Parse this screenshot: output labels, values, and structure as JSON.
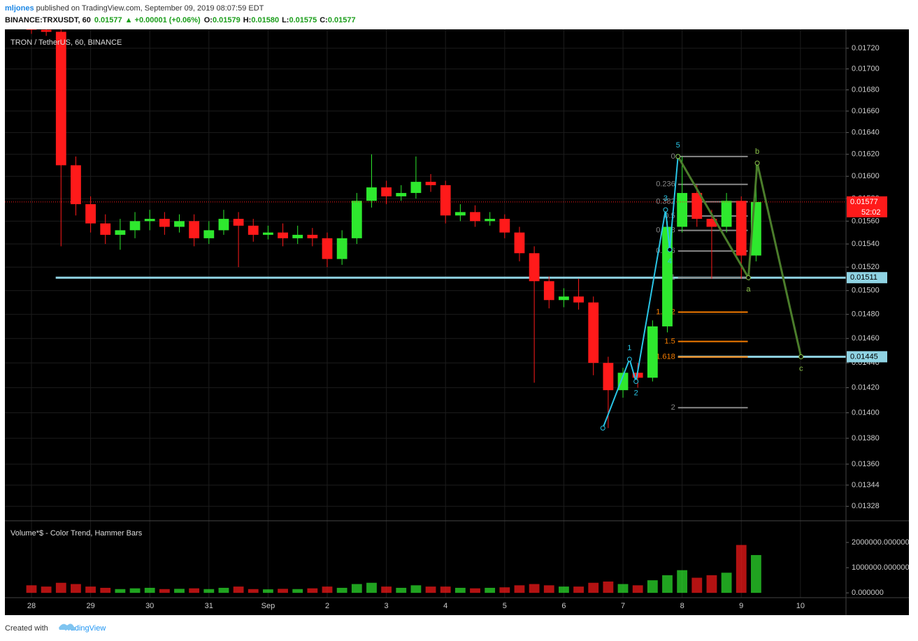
{
  "header": {
    "author": "mljones",
    "published": " published on TradingView.com, September 09, 2019 08:07:59 EDT",
    "symbol": "BINANCE:TRXUSDT, 60",
    "last": "0.01577",
    "change": "+0.00001 (+0.06%)",
    "o_label": "O:",
    "o": "0.01579",
    "h_label": "H:",
    "h": "0.01580",
    "l_label": "L:",
    "l": "0.01575",
    "c_label": "C:",
    "c": "0.01577"
  },
  "footer": {
    "text": "Created with",
    "brand": "TradingView"
  },
  "chart_data": {
    "type": "candlestick",
    "title": "TRON / TetherUS, 60, BINANCE",
    "log_scale": true,
    "grid": true,
    "up_color": "#2ee82e",
    "down_color": "#ff1a1a",
    "x": [
      0,
      0.25,
      0.5,
      0.75,
      1,
      1.25,
      1.5,
      1.75,
      2,
      2.25,
      2.5,
      2.75,
      3,
      3.25,
      3.5,
      3.75,
      4,
      4.25,
      4.5,
      4.75,
      5,
      5.25,
      5.5,
      5.75,
      6,
      6.25,
      6.5,
      6.75,
      7,
      7.25,
      7.5,
      7.75,
      8,
      8.25,
      8.5,
      8.75,
      9,
      9.25,
      9.5,
      9.75,
      10,
      10.25,
      10.5,
      10.75,
      11,
      11.25,
      11.5,
      11.75,
      12,
      12.25
    ],
    "open": [
      0.0174,
      0.01738,
      0.01736,
      0.0161,
      0.01575,
      0.01558,
      0.01548,
      0.01552,
      0.0156,
      0.01562,
      0.01555,
      0.0156,
      0.01545,
      0.01552,
      0.01562,
      0.01556,
      0.01548,
      0.0155,
      0.01545,
      0.01548,
      0.01545,
      0.01527,
      0.01545,
      0.01578,
      0.0159,
      0.01582,
      0.01585,
      0.01595,
      0.01592,
      0.01565,
      0.01568,
      0.0156,
      0.01562,
      0.0155,
      0.01532,
      0.01508,
      0.01492,
      0.01495,
      0.0149,
      0.0144,
      0.01418,
      0.01432,
      0.01428,
      0.0147,
      0.01555,
      0.01585,
      0.01562,
      0.01555,
      0.01578,
      0.0153
    ],
    "high": [
      0.01744,
      0.01742,
      0.0174,
      0.01618,
      0.01582,
      0.01566,
      0.01562,
      0.01568,
      0.0157,
      0.01568,
      0.01566,
      0.01566,
      0.0156,
      0.0157,
      0.01568,
      0.01562,
      0.01556,
      0.01558,
      0.01556,
      0.01554,
      0.0155,
      0.01552,
      0.01585,
      0.0162,
      0.01596,
      0.01592,
      0.01618,
      0.01602,
      0.01596,
      0.01575,
      0.01574,
      0.01568,
      0.01566,
      0.01555,
      0.01538,
      0.01512,
      0.01502,
      0.0151,
      0.01495,
      0.01445,
      0.01436,
      0.0144,
      0.01475,
      0.0156,
      0.01618,
      0.01592,
      0.0157,
      0.01585,
      0.01582,
      0.0161
    ],
    "low": [
      0.01734,
      0.01732,
      0.01538,
      0.01565,
      0.0155,
      0.0154,
      0.01535,
      0.01545,
      0.01552,
      0.01548,
      0.0155,
      0.01538,
      0.0154,
      0.01548,
      0.0152,
      0.01542,
      0.01544,
      0.01538,
      0.0154,
      0.01538,
      0.0152,
      0.01522,
      0.0154,
      0.01572,
      0.01575,
      0.01578,
      0.0158,
      0.01586,
      0.01558,
      0.0156,
      0.01555,
      0.01556,
      0.01545,
      0.01525,
      0.01424,
      0.01485,
      0.01486,
      0.01484,
      0.0143,
      0.01388,
      0.01412,
      0.0142,
      0.01425,
      0.01465,
      0.0155,
      0.01555,
      0.0151,
      0.0155,
      0.0151,
      0.01525
    ],
    "close": [
      0.01738,
      0.01736,
      0.0161,
      0.01575,
      0.01558,
      0.01548,
      0.01552,
      0.0156,
      0.01562,
      0.01555,
      0.0156,
      0.01545,
      0.01552,
      0.01562,
      0.01556,
      0.01548,
      0.0155,
      0.01545,
      0.01548,
      0.01545,
      0.01527,
      0.01545,
      0.01578,
      0.0159,
      0.01582,
      0.01585,
      0.01595,
      0.01592,
      0.01565,
      0.01568,
      0.0156,
      0.01562,
      0.0155,
      0.01532,
      0.01508,
      0.01492,
      0.01495,
      0.0149,
      0.0144,
      0.01418,
      0.01432,
      0.01428,
      0.0147,
      0.01555,
      0.01585,
      0.01562,
      0.01555,
      0.01578,
      0.0153,
      0.01577
    ],
    "xlim": [
      -0.449,
      13.77
    ],
    "xticks": [
      {
        "value": 0,
        "label": "28"
      },
      {
        "value": 1,
        "label": "29"
      },
      {
        "value": 2,
        "label": "30"
      },
      {
        "value": 3,
        "label": "31"
      },
      {
        "value": 4,
        "label": "Sep"
      },
      {
        "value": 5,
        "label": "2"
      },
      {
        "value": 6,
        "label": "3"
      },
      {
        "value": 7,
        "label": "4"
      },
      {
        "value": 8,
        "label": "5"
      },
      {
        "value": 9,
        "label": "6"
      },
      {
        "value": 10,
        "label": "7"
      },
      {
        "value": 11,
        "label": "8"
      },
      {
        "value": 12,
        "label": "9"
      },
      {
        "value": 13,
        "label": "10"
      }
    ],
    "ylim": [
      0.013172,
      0.017384
    ],
    "yticks": [
      {
        "value": 0.0172,
        "label": "0.01720"
      },
      {
        "value": 0.017,
        "label": "0.01700"
      },
      {
        "value": 0.0168,
        "label": "0.01680"
      },
      {
        "value": 0.0166,
        "label": "0.01660"
      },
      {
        "value": 0.0164,
        "label": "0.01640"
      },
      {
        "value": 0.0162,
        "label": "0.01620"
      },
      {
        "value": 0.016,
        "label": "0.01600"
      },
      {
        "value": 0.0158,
        "label": "0.01580"
      },
      {
        "value": 0.0156,
        "label": "0.01560"
      },
      {
        "value": 0.0154,
        "label": "0.01540"
      },
      {
        "value": 0.0152,
        "label": "0.01520"
      },
      {
        "value": 0.015,
        "label": "0.01500"
      },
      {
        "value": 0.0148,
        "label": "0.01480"
      },
      {
        "value": 0.0146,
        "label": "0.01460"
      },
      {
        "value": 0.0144,
        "label": "0.01440"
      },
      {
        "value": 0.0142,
        "label": "0.01420"
      },
      {
        "value": 0.014,
        "label": "0.01400"
      },
      {
        "value": 0.0138,
        "label": "0.01380"
      },
      {
        "value": 0.0136,
        "label": "0.01360"
      },
      {
        "value": 0.01344,
        "label": "0.01344"
      },
      {
        "value": 0.01328,
        "label": "0.01328"
      }
    ],
    "price_line": {
      "value": 0.01577,
      "countdown": "52:02",
      "color": "#ff1a1a"
    },
    "hlines": {
      "color": "#8fd3e3",
      "lines": [
        {
          "value": 0.01511,
          "x_start": 0.41
        },
        {
          "value": 0.01445,
          "x_start": 10.93
        }
      ]
    },
    "fib": {
      "levels": [
        0,
        0.236,
        0.382,
        0.5,
        0.618,
        0.786,
        1,
        1.272,
        1.5,
        1.618,
        2
      ],
      "colors": [
        "#888888",
        "#888888",
        "#888888",
        "#888888",
        "#888888",
        "#888888",
        "#888888",
        "#f57c00",
        "#f57c00",
        "#f57c00",
        "#888888"
      ],
      "start_price": 0.01618,
      "end_price": 0.01511,
      "x": [
        10.93,
        12.11
      ]
    },
    "impulse": {
      "color": "#29c5e6",
      "points": [
        {
          "x": 9.66,
          "y": 0.01388
        },
        {
          "label": "1",
          "x": 10.11,
          "y": 0.01443
        },
        {
          "label": "2",
          "x": 10.22,
          "y": 0.01425
        },
        {
          "label": "3",
          "x": 10.72,
          "y": 0.0157
        },
        {
          "label": "4",
          "x": 10.79,
          "y": 0.01535
        },
        {
          "label": "5",
          "x": 10.93,
          "y": 0.01618
        }
      ]
    },
    "correction": {
      "color": "#4b7d2b",
      "label_color": "#8bc34a",
      "points": [
        {
          "x": 10.93,
          "y": 0.01618
        },
        {
          "label": "a",
          "x": 12.12,
          "y": 0.01511
        },
        {
          "label": "b",
          "x": 12.27,
          "y": 0.01612
        },
        {
          "label": "c",
          "x": 13.01,
          "y": 0.01445
        }
      ]
    },
    "volume": {
      "title": "Volume*$ - Color Trend, Hammer Bars",
      "values": [
        300000,
        250000,
        400000,
        350000,
        250000,
        200000,
        150000,
        180000,
        200000,
        150000,
        160000,
        180000,
        150000,
        200000,
        250000,
        150000,
        140000,
        160000,
        150000,
        180000,
        250000,
        200000,
        350000,
        400000,
        250000,
        200000,
        300000,
        250000,
        250000,
        200000,
        180000,
        200000,
        220000,
        300000,
        350000,
        300000,
        250000,
        250000,
        400000,
        450000,
        350000,
        300000,
        500000,
        700000,
        900000,
        600000,
        700000,
        800000,
        1900000,
        1500000
      ],
      "ylim": [
        -190000,
        2860000
      ],
      "yticks": [
        {
          "value": 0,
          "label": "0.000000"
        },
        {
          "value": 1000000,
          "label": "1000000.000000"
        },
        {
          "value": 2000000,
          "label": "2000000.000000"
        }
      ]
    }
  }
}
